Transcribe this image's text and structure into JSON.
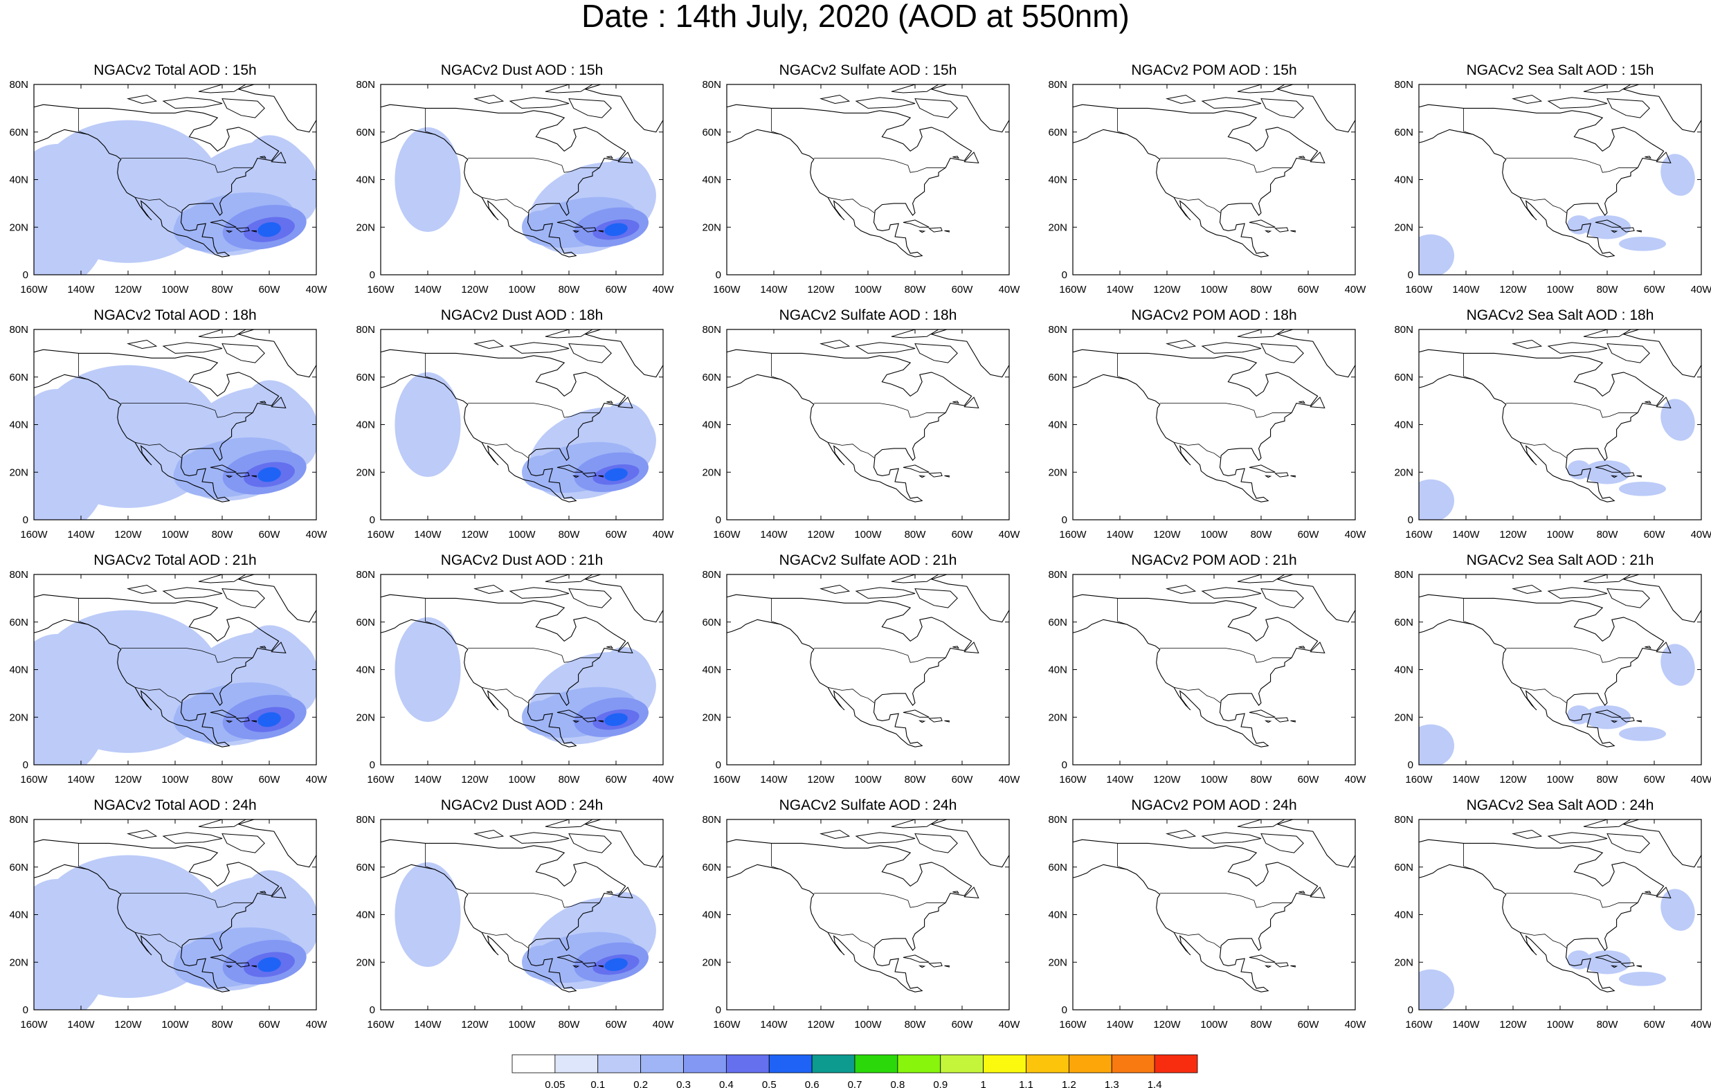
{
  "title": "Date : 14th July, 2020 (AOD at 550nm)",
  "axis": {
    "lat_labels": [
      "0",
      "20N",
      "40N",
      "60N",
      "80N"
    ],
    "lon_labels": [
      "160W",
      "140W",
      "120W",
      "100W",
      "80W",
      "60W",
      "40W"
    ],
    "lat_range": [
      0,
      80
    ],
    "lon_range": [
      -160,
      -40
    ]
  },
  "panels": [
    [
      {
        "title": "NGACv2 Total AOD : 15h",
        "field": "total"
      },
      {
        "title": "NGACv2 Dust AOD : 15h",
        "field": "dust"
      },
      {
        "title": "NGACv2 Sulfate AOD : 15h",
        "field": "sulfate"
      },
      {
        "title": "NGACv2 POM AOD : 15h",
        "field": "pom"
      },
      {
        "title": "NGACv2 Sea Salt AOD : 15h",
        "field": "seasalt"
      }
    ],
    [
      {
        "title": "NGACv2 Total AOD : 18h",
        "field": "total"
      },
      {
        "title": "NGACv2 Dust AOD : 18h",
        "field": "dust"
      },
      {
        "title": "NGACv2 Sulfate AOD : 18h",
        "field": "sulfate"
      },
      {
        "title": "NGACv2 POM AOD : 18h",
        "field": "pom"
      },
      {
        "title": "NGACv2 Sea Salt AOD : 18h",
        "field": "seasalt"
      }
    ],
    [
      {
        "title": "NGACv2 Total AOD : 21h",
        "field": "total"
      },
      {
        "title": "NGACv2 Dust AOD : 21h",
        "field": "dust"
      },
      {
        "title": "NGACv2 Sulfate AOD : 21h",
        "field": "sulfate"
      },
      {
        "title": "NGACv2 POM AOD : 21h",
        "field": "pom"
      },
      {
        "title": "NGACv2 Sea Salt AOD : 21h",
        "field": "seasalt"
      }
    ],
    [
      {
        "title": "NGACv2 Total AOD : 24h",
        "field": "total"
      },
      {
        "title": "NGACv2 Dust AOD : 24h",
        "field": "dust"
      },
      {
        "title": "NGACv2 Sulfate AOD : 24h",
        "field": "sulfate"
      },
      {
        "title": "NGACv2 POM AOD : 24h",
        "field": "pom"
      },
      {
        "title": "NGACv2 Sea Salt  AOD : 24h",
        "field": "seasalt"
      }
    ]
  ],
  "colorbar": {
    "labels": [
      "0.05",
      "0.1",
      "0.2",
      "0.3",
      "0.4",
      "0.5",
      "0.6",
      "0.7",
      "0.8",
      "0.9",
      "1",
      "1.1",
      "1.2",
      "1.3",
      "1.4"
    ],
    "colors": [
      "#ffffff",
      "#dde6fb",
      "#bccbf8",
      "#9fb5f6",
      "#8398f3",
      "#6470ee",
      "#1e63f5",
      "#0d9a8f",
      "#2bd80a",
      "#87f50c",
      "#c5f53a",
      "#fbfa0e",
      "#fcc40b",
      "#fca60a",
      "#f97a10",
      "#f82d10"
    ]
  }
}
